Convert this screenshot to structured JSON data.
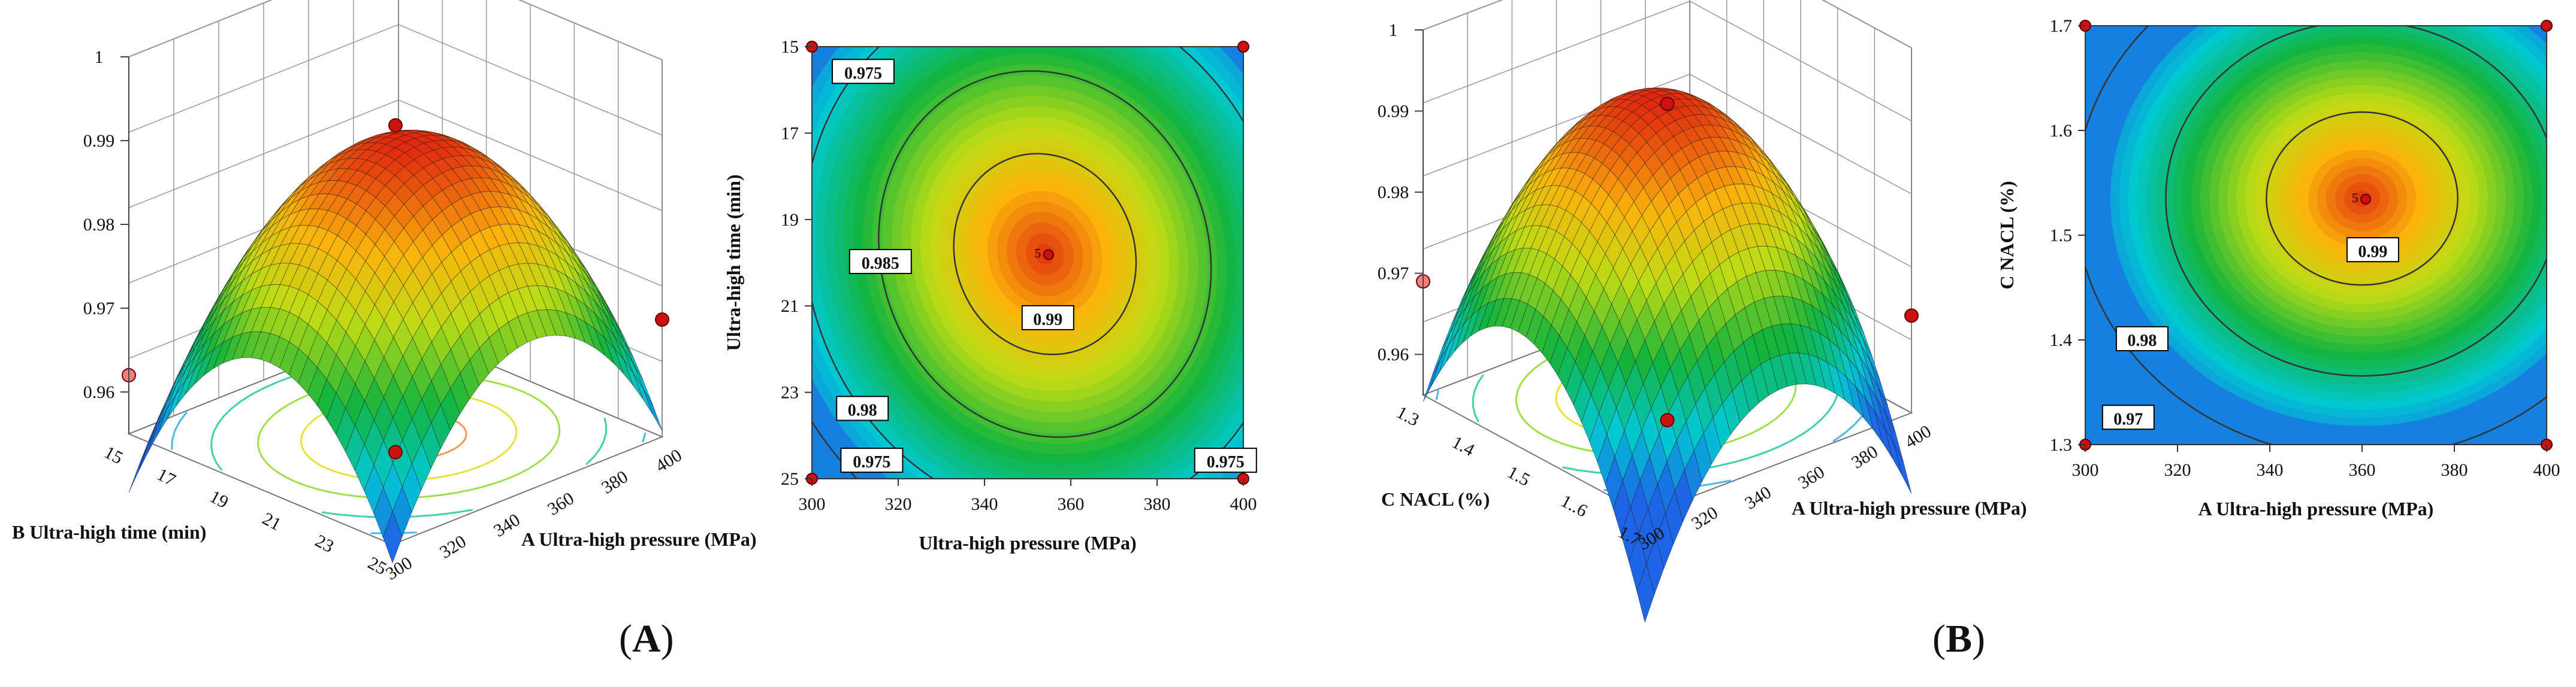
{
  "panels": [
    {
      "label_open": "(",
      "label_letter": "A",
      "label_close": ")"
    },
    {
      "label_open": "(",
      "label_letter": "B",
      "label_close": ")"
    }
  ],
  "colors": {
    "surface_low": "#1e64e6",
    "surface_mid": "#1aa32c",
    "surface_high": "#d83a10",
    "contour_line": "#333333",
    "design_point": "#cc1111",
    "design_point_light": "#f08080",
    "label_box_border": "#000000"
  },
  "chart_data": [
    {
      "type": "surface3d",
      "title": "",
      "xlabel": "A Ultra-high pressure (MPa)",
      "ylabel": "B Ultra-high time (min)",
      "zlabel": "",
      "x_ticks": [
        "300",
        "320",
        "340",
        "360",
        "380",
        "400"
      ],
      "y_ticks": [
        "15",
        "17",
        "19",
        "21",
        "23",
        "25"
      ],
      "z_ticks": [
        "0.96",
        "0.97",
        "0.98",
        "0.99",
        "1"
      ],
      "xlim": [
        300,
        400
      ],
      "ylim": [
        15,
        25
      ],
      "zlim": [
        0.955,
        1.0
      ],
      "peak": {
        "x": 352,
        "y": 19.7,
        "z": 0.9905
      },
      "design_points": [
        {
          "x": 350,
          "y": 20,
          "z": 0.992
        },
        {
          "x": 300,
          "y": 25,
          "z": 0.962
        },
        {
          "x": 400,
          "y": 15,
          "z": 0.969
        },
        {
          "x": 350,
          "y": 20,
          "z": 0.953
        }
      ]
    },
    {
      "type": "contour",
      "title": "",
      "xlabel": "Ultra-high pressure (MPa)",
      "ylabel": "Ultra-high time (min)",
      "x_ticks": [
        "300",
        "320",
        "340",
        "360",
        "380",
        "400"
      ],
      "y_ticks": [
        "15",
        "17",
        "19",
        "21",
        "23",
        "25"
      ],
      "xlim": [
        300,
        400
      ],
      "ylim": [
        15,
        25
      ],
      "center": {
        "x": 354,
        "y": 19.8
      },
      "contour_levels": [
        "0.975",
        "0.98",
        "0.985",
        "0.99"
      ],
      "contour_labels": [
        {
          "text": "0.975",
          "x": 305,
          "y": 15.6
        },
        {
          "text": "0.985",
          "x": 309,
          "y": 20.0
        },
        {
          "text": "0.99",
          "x": 349,
          "y": 21.3
        },
        {
          "text": "0.98",
          "x": 306,
          "y": 23.4
        },
        {
          "text": "0.975",
          "x": 307,
          "y": 24.6
        },
        {
          "text": "0.975",
          "x": 389,
          "y": 24.6
        }
      ],
      "center_point_label": "5",
      "corner_points": [
        [
          300,
          15
        ],
        [
          400,
          15
        ],
        [
          300,
          25
        ],
        [
          400,
          25
        ]
      ]
    },
    {
      "type": "surface3d",
      "title": "",
      "xlabel": "A Ultra-high pressure (MPa)",
      "ylabel": "C NACL (%)",
      "zlabel": "",
      "x_ticks": [
        "300",
        "320",
        "340",
        "360",
        "380",
        "400"
      ],
      "y_ticks": [
        "1.3",
        "1.4",
        "1.5",
        "1..6",
        "1.7"
      ],
      "z_ticks": [
        "0.96",
        "0.97",
        "0.98",
        "0.99",
        "1"
      ],
      "xlim": [
        300,
        400
      ],
      "ylim": [
        1.3,
        1.7
      ],
      "zlim": [
        0.955,
        1.0
      ],
      "peak": {
        "x": 352,
        "y": 1.53,
        "z": 0.9915
      },
      "design_points": [
        {
          "x": 350,
          "y": 1.5,
          "z": 0.992
        },
        {
          "x": 300,
          "y": 1.7,
          "z": 0.969
        },
        {
          "x": 400,
          "y": 1.3,
          "z": 0.967
        },
        {
          "x": 350,
          "y": 1.5,
          "z": 0.953
        }
      ]
    },
    {
      "type": "contour",
      "title": "",
      "xlabel": "A Ultra-high pressure (MPa)",
      "ylabel": "C NACL (%)",
      "x_ticks": [
        "300",
        "320",
        "340",
        "360",
        "380",
        "400"
      ],
      "y_ticks": [
        "1.3",
        "1.4",
        "1.5",
        "1.6",
        "1.7"
      ],
      "xlim": [
        300,
        400
      ],
      "ylim": [
        1.3,
        1.7
      ],
      "center": {
        "x": 360,
        "y": 1.535
      },
      "contour_levels": [
        "0.97",
        "0.98",
        "0.99"
      ],
      "contour_labels": [
        {
          "text": "0.99",
          "x": 357,
          "y": 1.485
        },
        {
          "text": "0.98",
          "x": 307,
          "y": 1.4
        },
        {
          "text": "0.97",
          "x": 304,
          "y": 1.325
        }
      ],
      "center_point_label": "5",
      "corner_points": [
        [
          300,
          1.7
        ],
        [
          400,
          1.7
        ],
        [
          300,
          1.3
        ],
        [
          400,
          1.3
        ]
      ]
    }
  ]
}
